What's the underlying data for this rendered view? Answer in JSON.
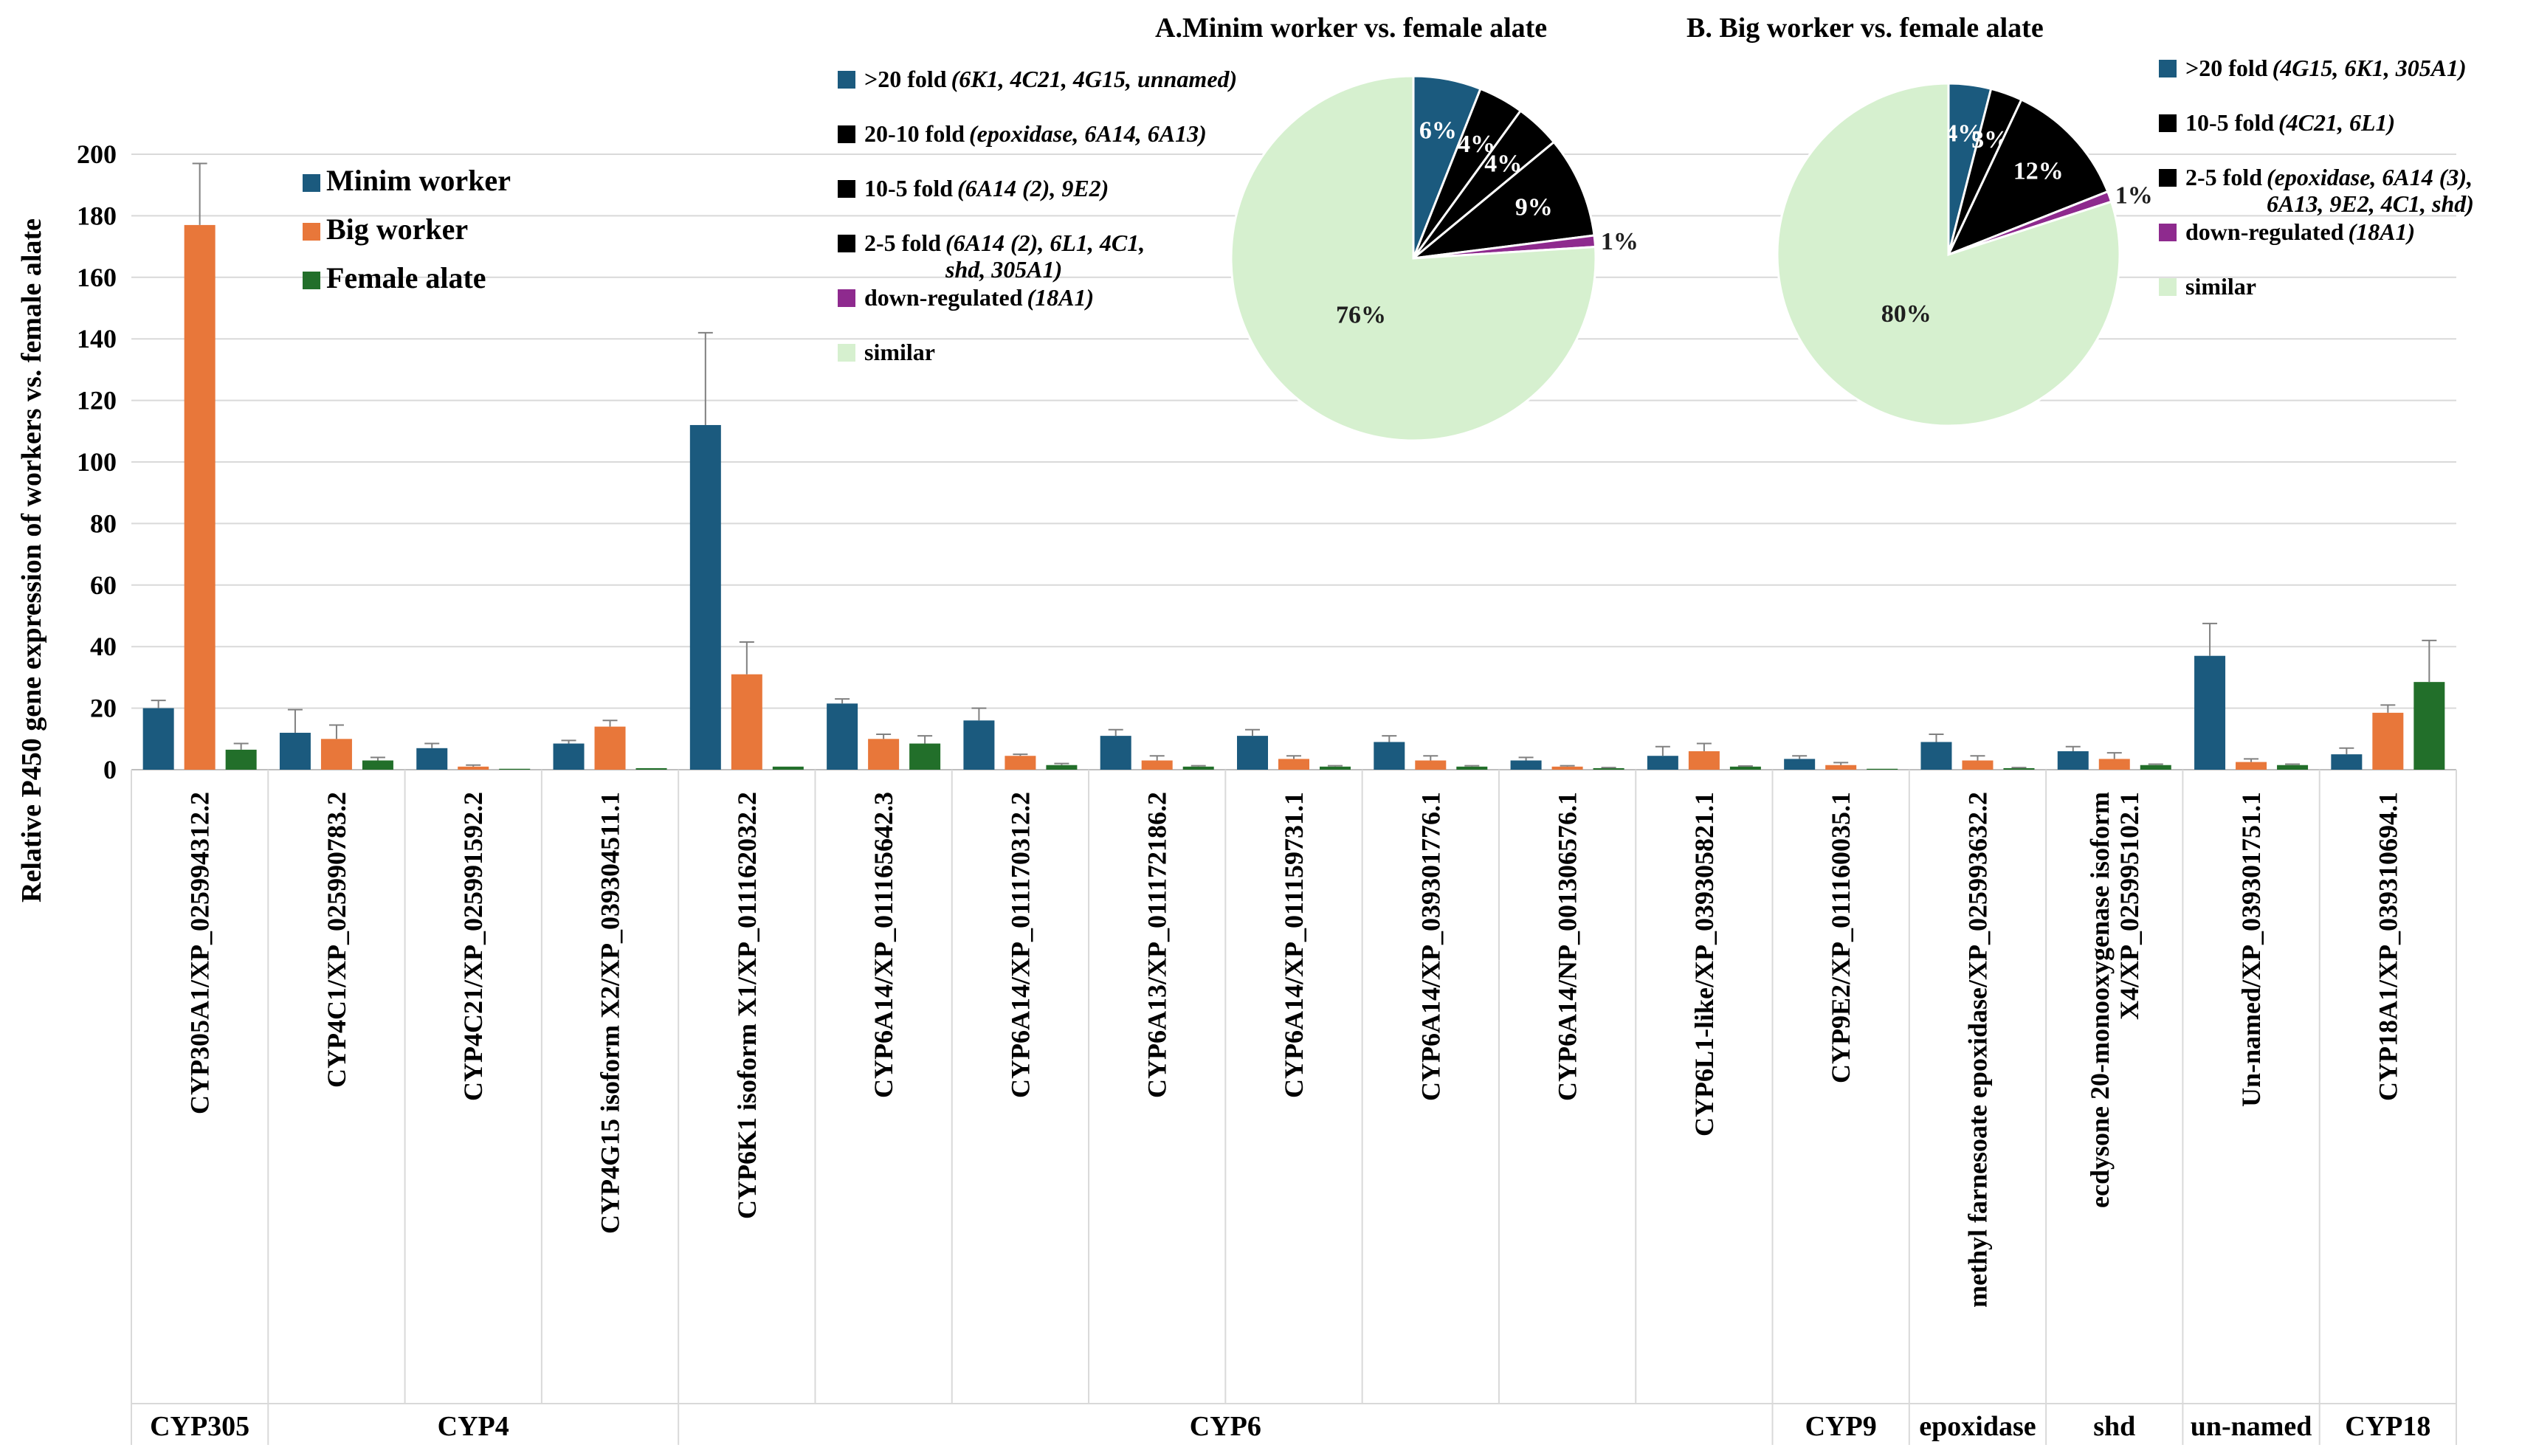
{
  "colors": {
    "minim": "#1b5a7e",
    "big": "#e8773a",
    "alate": "#226f2a",
    "grid": "#d9d9d9",
    "axis": "#bfbfbf",
    "error_bar": "#808080",
    "pie_gt20": "#1b5a7e",
    "pie_20_10": "#e8773a",
    "pie_10_5": "#d46fd8",
    "pie_2_5": "#1aa3dc",
    "pie_down": "#8e2a8e",
    "pie_similar": "#d6f0cf"
  },
  "chart_data": [
    {
      "type": "bar",
      "ylabel": "Relative P450 gene expression of workers vs. female alate",
      "ylim": [
        0,
        200
      ],
      "yticks": [
        0,
        20,
        40,
        60,
        80,
        100,
        120,
        140,
        160,
        180,
        200
      ],
      "grid": true,
      "legend_placement": "top-left",
      "categories": [
        "CYP305A1/XP_025994312.2",
        "CYP4C1/XP_025990783.2",
        "CYP4C21/XP_025991592.2",
        "CYP4G15 isoform X2/XP_039304511.1",
        "CYP6K1 isoform X1/XP_011162032.2",
        "CYP6A14/XP_011165642.3",
        "CYP6A14/XP_011170312.2",
        "CYP6A13/XP_011172186.2",
        "CYP6A14/XP_011159731.1",
        "CYP6A14/XP_039301776.1",
        "CYP6A14/NP_001306576.1",
        "CYP6L1-like/XP_039305821.1",
        "CYP9E2/XP_011160035.1",
        "methyl farnesoate epoxidase/XP_025993632.2",
        "ecdysone 20-monooxygenase isoform X4/XP_025995102.1",
        "Un-named/XP_039301751.1",
        "CYP18A1/XP_039310694.1"
      ],
      "category_lines": [
        [
          "CYP305A1/XP_025994312.2"
        ],
        [
          "CYP4C1/XP_025990783.2"
        ],
        [
          "CYP4C21/XP_025991592.2"
        ],
        [
          "CYP4G15 isoform X2/XP_039304511.1"
        ],
        [
          "CYP6K1 isoform X1/XP_011162032.2"
        ],
        [
          "CYP6A14/XP_011165642.3"
        ],
        [
          "CYP6A14/XP_011170312.2"
        ],
        [
          "CYP6A13/XP_011172186.2"
        ],
        [
          "CYP6A14/XP_011159731.1"
        ],
        [
          "CYP6A14/XP_039301776.1"
        ],
        [
          "CYP6A14/NP_001306576.1"
        ],
        [
          "CYP6L1-like/XP_039305821.1"
        ],
        [
          "CYP9E2/XP_011160035.1"
        ],
        [
          "methyl farnesoate epoxidase/XP_025993632.2"
        ],
        [
          "ecdysone 20-monooxygenase isoform",
          "X4/XP_025995102.1"
        ],
        [
          "Un-named/XP_039301751.1"
        ],
        [
          "CYP18A1/XP_039310694.1"
        ]
      ],
      "series": [
        {
          "name": "Minim worker",
          "values": [
            20,
            12,
            7,
            8.5,
            112,
            21.5,
            16,
            11,
            11,
            9,
            3,
            4.5,
            3.5,
            9,
            6,
            37,
            5
          ],
          "errors": [
            2.5,
            7.5,
            1.5,
            1,
            30,
            1.5,
            4,
            2,
            2,
            2,
            1,
            3,
            1,
            2.5,
            1.5,
            10.5,
            2
          ]
        },
        {
          "name": "Big worker",
          "values": [
            177,
            10,
            1,
            14,
            31,
            10,
            4.5,
            3,
            3.5,
            3,
            1,
            6,
            1.5,
            3,
            3.5,
            2.5,
            18.5
          ],
          "errors": [
            20,
            4.5,
            0.5,
            2,
            10.5,
            1.5,
            0.5,
            1.5,
            1,
            1.5,
            0.3,
            2.5,
            0.8,
            1.5,
            2,
            1,
            2.5
          ]
        },
        {
          "name": "Female alate",
          "values": [
            6.5,
            3,
            0.3,
            0.5,
            1,
            8.5,
            1.5,
            1,
            1,
            1,
            0.5,
            1,
            0.3,
            0.5,
            1.5,
            1.5,
            28.5
          ],
          "errors": [
            2,
            1,
            0,
            0,
            0,
            2.5,
            0.5,
            0.3,
            0.3,
            0.3,
            0.2,
            0.2,
            0,
            0.2,
            0.3,
            0.3,
            13.5
          ]
        }
      ],
      "groups": [
        {
          "label": "CYP305",
          "start": 0,
          "end": 0
        },
        {
          "label": "CYP4",
          "start": 1,
          "end": 3
        },
        {
          "label": "CYP6",
          "start": 4,
          "end": 11
        },
        {
          "label": "CYP9",
          "start": 12,
          "end": 12
        },
        {
          "label": "epoxidase",
          "start": 13,
          "end": 13
        },
        {
          "label": "shd",
          "start": 14,
          "end": 14
        },
        {
          "label": "un-named",
          "start": 15,
          "end": 15
        },
        {
          "label": "CYP18",
          "start": 16,
          "end": 16
        }
      ]
    },
    {
      "type": "pie",
      "title": "A.Minim worker vs. female alate",
      "legend_placement": "left",
      "slices": [
        {
          "key": "gt20",
          "label": "6%",
          "value": 6,
          "legend_main": ">20 fold",
          "legend_detail": "(6K1, 4C21, 4G15, unnamed)"
        },
        {
          "key": "f20_10",
          "label": "4%",
          "value": 4,
          "legend_main": "20-10 fold",
          "legend_detail": "(epoxidase, 6A14, 6A13)"
        },
        {
          "key": "f10_5",
          "label": "4%",
          "value": 4,
          "legend_main": "10-5 fold",
          "legend_detail": "(6A14 (2), 9E2)"
        },
        {
          "key": "f2_5",
          "label": "9%",
          "value": 9,
          "legend_main": "2-5 fold",
          "legend_detail": "(6A14 (2), 6L1, 4C1,",
          "legend_detail2": "shd, 305A1)"
        },
        {
          "key": "down",
          "label": "1%",
          "value": 1,
          "legend_main": "down-regulated",
          "legend_detail": "(18A1)"
        },
        {
          "key": "similar",
          "label": "76%",
          "value": 76,
          "legend_main": "similar",
          "legend_detail": ""
        }
      ]
    },
    {
      "type": "pie",
      "title": "B. Big worker vs. female alate",
      "legend_placement": "right",
      "slices": [
        {
          "key": "gt20",
          "label": "4%",
          "value": 4,
          "legend_main": ">20 fold",
          "legend_detail": "(4G15, 6K1, 305A1)"
        },
        {
          "key": "f10_5",
          "label": "3%",
          "value": 3,
          "legend_main": "10-5 fold",
          "legend_detail": "(4C21, 6L1)"
        },
        {
          "key": "f2_5",
          "label": "12%",
          "value": 12,
          "legend_main": "2-5 fold",
          "legend_detail": "(epoxidase, 6A14 (3),",
          "legend_detail2": "6A13, 9E2, 4C1, shd)"
        },
        {
          "key": "down",
          "label": "1%",
          "value": 1,
          "legend_main": "down-regulated",
          "legend_detail": "(18A1)"
        },
        {
          "key": "similar",
          "label": "80%",
          "value": 80,
          "legend_main": "similar",
          "legend_detail": ""
        }
      ]
    }
  ]
}
